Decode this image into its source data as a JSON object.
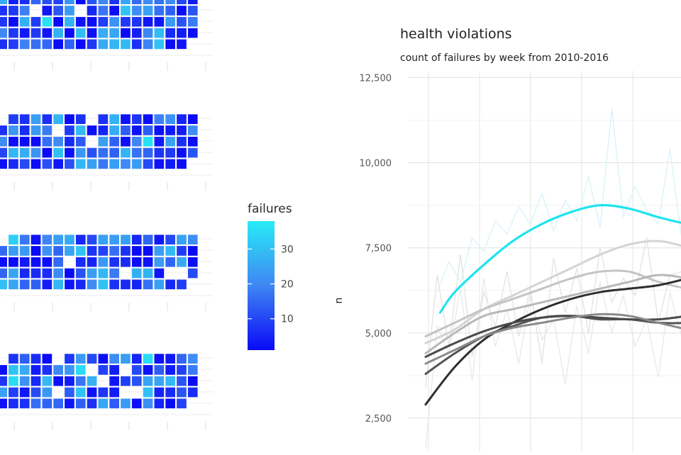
{
  "chart_data": [
    {
      "type": "heatmap",
      "panels": 4,
      "legend": {
        "title": "failures",
        "ticks": [
          "30",
          "20",
          "10"
        ],
        "tick_values": [
          30,
          20,
          10
        ],
        "range": [
          1,
          38
        ],
        "low_color": "#0a0af5",
        "mid_color": "#3f86f4",
        "high_color": "#27ecf5"
      },
      "grid": true,
      "legend_placement": "right"
    },
    {
      "type": "line",
      "title": "health violations",
      "subtitle": "count of failures by week from 2010-2016",
      "ylabel": "n",
      "ylim": [
        1500,
        12800
      ],
      "y_ticks": [
        "12,500",
        "10,000",
        "7,500",
        "5,000",
        "2,500"
      ],
      "y_tick_values": [
        12500,
        10000,
        7500,
        5000,
        2500
      ],
      "xlim": [
        0,
        100
      ],
      "grid": true,
      "raw_series": [
        {
          "color": "#d8f3f8",
          "x": [
            4,
            8,
            12,
            16,
            20,
            24,
            28,
            32,
            36,
            40,
            44,
            48,
            52,
            56,
            60,
            64,
            68,
            72,
            76,
            80,
            84,
            88,
            92,
            96,
            100
          ],
          "y": [
            6200,
            7100,
            6500,
            7800,
            7400,
            8300,
            7900,
            8700,
            8200,
            9100,
            8000,
            8900,
            8300,
            9600,
            8100,
            11600,
            8400,
            9300,
            8600,
            8200,
            10400,
            7800,
            8300,
            8600,
            8100
          ]
        },
        {
          "color": "#e2e2e2",
          "x": [
            0,
            4,
            8,
            12,
            16,
            20,
            24,
            28,
            32,
            36,
            40,
            44,
            48,
            52,
            56,
            60,
            64,
            68,
            72,
            76,
            80,
            84,
            88,
            92,
            96,
            100
          ],
          "y": [
            3400,
            6700,
            4600,
            7300,
            4300,
            6200,
            5200,
            6800,
            4900,
            6300,
            4100,
            7200,
            5600,
            6900,
            5000,
            7500,
            5900,
            6600,
            6100,
            7800,
            5300,
            6700,
            6800,
            5900,
            7000,
            6400
          ]
        },
        {
          "color": "#e8e8e8",
          "x": [
            0,
            4,
            8,
            12,
            16,
            20,
            24,
            28,
            32,
            36,
            40,
            44,
            48,
            52,
            56,
            60,
            64,
            68,
            72,
            76,
            80,
            84,
            88,
            92,
            96,
            100
          ],
          "y": [
            1600,
            5200,
            4400,
            6300,
            3600,
            6600,
            4600,
            5700,
            4100,
            6100,
            4800,
            5400,
            3500,
            5800,
            4400,
            6500,
            5000,
            6100,
            4600,
            5400,
            3700,
            6200,
            4900,
            5600,
            4300,
            5900
          ]
        }
      ],
      "series": [
        {
          "color": "#1ee3f0",
          "x": [
            5,
            10,
            20,
            30,
            40,
            50,
            60,
            70,
            80,
            90,
            100
          ],
          "y": [
            5600,
            6200,
            7000,
            7700,
            8200,
            8550,
            8750,
            8650,
            8400,
            8200,
            8100
          ]
        },
        {
          "color": "#d4d4d4",
          "x": [
            0,
            10,
            20,
            30,
            40,
            50,
            60,
            70,
            80,
            90,
            100
          ],
          "y": [
            4700,
            5100,
            5700,
            6100,
            6500,
            6900,
            7300,
            7600,
            7700,
            7500,
            7100
          ]
        },
        {
          "color": "#c4c4c4",
          "x": [
            0,
            10,
            20,
            30,
            40,
            50,
            60,
            70,
            80,
            90,
            100
          ],
          "y": [
            4900,
            5300,
            5700,
            6000,
            6300,
            6600,
            6800,
            6800,
            6500,
            6300,
            6200
          ]
        },
        {
          "color": "#b8b8b8",
          "x": [
            0,
            10,
            20,
            30,
            40,
            50,
            60,
            70,
            80,
            90,
            100
          ],
          "y": [
            4400,
            5000,
            5500,
            5700,
            5900,
            6100,
            6300,
            6500,
            6700,
            6600,
            6400
          ]
        },
        {
          "color": "#2e2e2e",
          "x": [
            0,
            10,
            20,
            30,
            40,
            50,
            60,
            70,
            80,
            90,
            100
          ],
          "y": [
            2900,
            4000,
            4800,
            5300,
            5700,
            6000,
            6200,
            6300,
            6400,
            6600,
            6800
          ]
        },
        {
          "color": "#555555",
          "x": [
            0,
            10,
            20,
            30,
            40,
            50,
            60,
            70,
            80,
            90,
            100
          ],
          "y": [
            3800,
            4400,
            4900,
            5200,
            5450,
            5500,
            5400,
            5400,
            5300,
            5300,
            5400
          ]
        },
        {
          "color": "#4a4a4a",
          "x": [
            0,
            10,
            20,
            30,
            40,
            50,
            60,
            70,
            80,
            90,
            100
          ],
          "y": [
            4300,
            4700,
            5050,
            5300,
            5450,
            5500,
            5450,
            5400,
            5400,
            5500,
            5600
          ]
        },
        {
          "color": "#8a8a8a",
          "x": [
            0,
            10,
            20,
            30,
            40,
            50,
            60,
            70,
            80,
            90,
            100
          ],
          "y": [
            4100,
            4500,
            4900,
            5150,
            5300,
            5450,
            5550,
            5500,
            5300,
            5100,
            4900
          ]
        }
      ]
    }
  ]
}
